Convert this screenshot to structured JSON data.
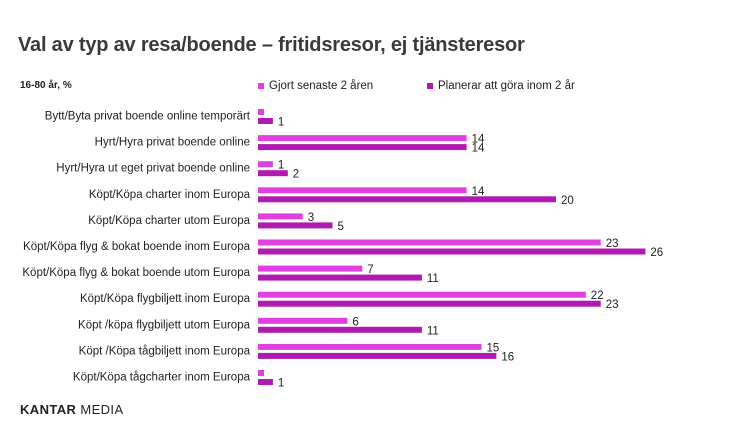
{
  "title": "Val av typ av resa/boende – fritidsresor, ej tjänsteresor",
  "subtitle": "16-80 år, %",
  "brand": {
    "name_bold": "KANTAR",
    "name_regular": " MEDIA"
  },
  "chart_data": {
    "type": "bar",
    "orientation": "horizontal",
    "categories": [
      "Bytt/Byta privat boende online temporärt",
      "Hyrt/Hyra privat boende online",
      "Hyrt/Hyra ut eget privat boende online",
      "Köpt/Köpa charter inom Europa",
      "Köpt/Köpa charter utom Europa",
      "Köpt/Köpa flyg & bokat boende inom Europa",
      "Köpt/Köpa flyg & bokat boende utom Europa",
      "Köpt/Köpa flygbiljett inom Europa",
      "Köpt /köpa flygbiljett utom Europa",
      "Köpt /Köpa tågbiljett inom Europa",
      "Köpt/Köpa tågcharter inom Europa"
    ],
    "series": [
      {
        "name": "Gjort senaste 2 åren",
        "color": "#e040e0",
        "values": [
          0,
          14,
          1,
          14,
          3,
          23,
          7,
          22,
          6,
          15,
          0
        ],
        "labels": [
          "",
          "14",
          "1",
          "14",
          "3",
          "23",
          "7",
          "22",
          "6",
          "15",
          ""
        ]
      },
      {
        "name": "Planerar att göra inom 2 år",
        "color": "#b01ab0",
        "values": [
          1,
          14,
          2,
          20,
          5,
          26,
          11,
          23,
          11,
          16,
          1
        ],
        "labels": [
          "1",
          "14",
          "2",
          "20",
          "5",
          "26",
          "11",
          "23",
          "11",
          "16",
          "1"
        ]
      }
    ],
    "legend_position": "top",
    "grid": false,
    "xlim": [
      0,
      27
    ]
  }
}
